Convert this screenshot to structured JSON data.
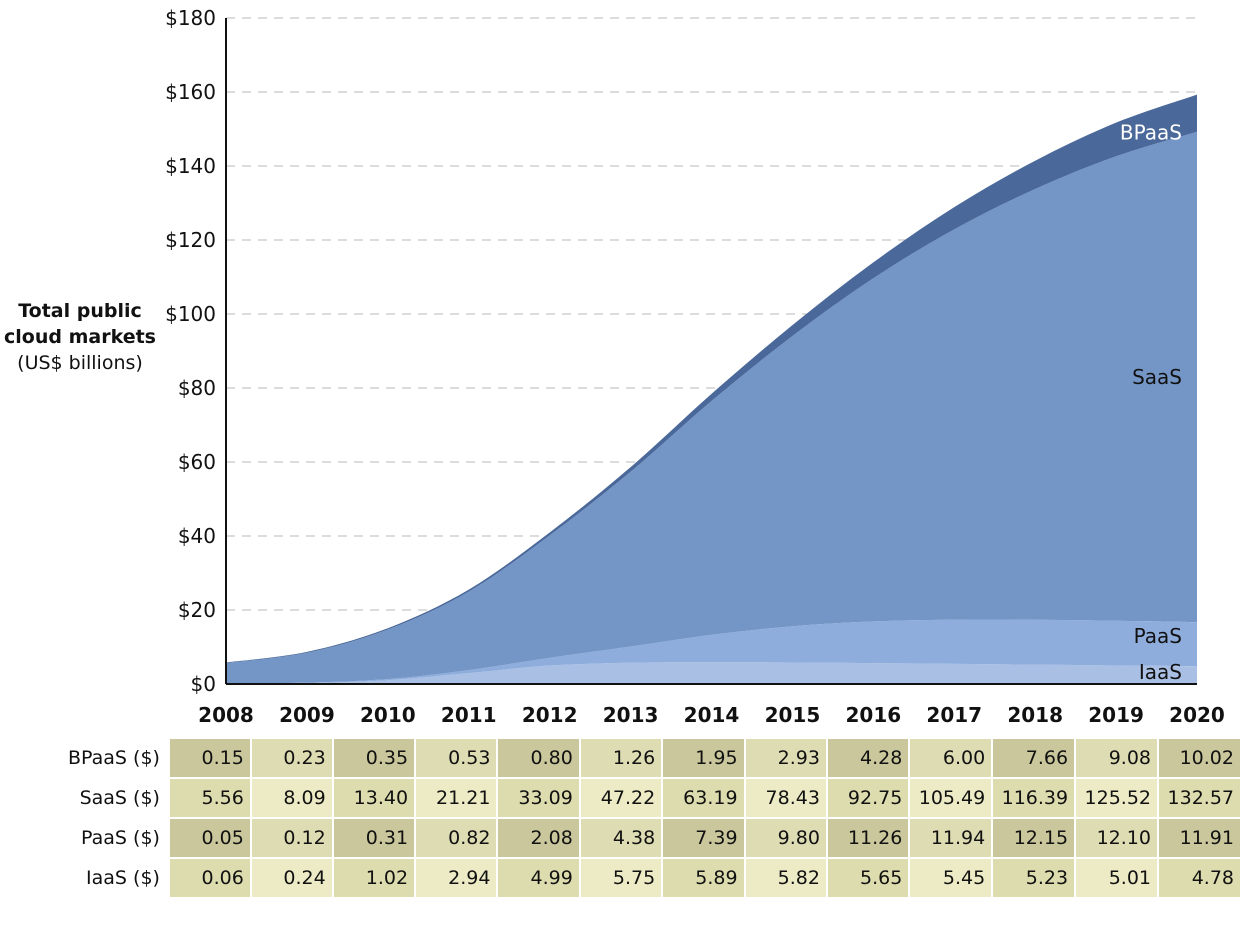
{
  "chart_data": {
    "type": "area",
    "stacked": true,
    "x": [
      "2008",
      "2009",
      "2010",
      "2011",
      "2012",
      "2013",
      "2014",
      "2015",
      "2016",
      "2017",
      "2018",
      "2019",
      "2020"
    ],
    "series": [
      {
        "name": "IaaS",
        "label": "IaaS ($)",
        "color": "#a9c0e4",
        "values": [
          0.06,
          0.24,
          1.02,
          2.94,
          4.99,
          5.75,
          5.89,
          5.82,
          5.65,
          5.45,
          5.23,
          5.01,
          4.78
        ]
      },
      {
        "name": "PaaS",
        "label": "PaaS ($)",
        "color": "#8eaddd",
        "values": [
          0.05,
          0.12,
          0.31,
          0.82,
          2.08,
          4.38,
          7.39,
          9.8,
          11.26,
          11.94,
          12.15,
          12.1,
          11.91
        ]
      },
      {
        "name": "SaaS",
        "label": "SaaS ($)",
        "color": "#7496c7",
        "values": [
          5.56,
          8.09,
          13.4,
          21.21,
          33.09,
          47.22,
          63.19,
          78.43,
          92.75,
          105.49,
          116.39,
          125.52,
          132.57
        ]
      },
      {
        "name": "BPaaS",
        "label": "BPaaS ($)",
        "color": "#4a6899",
        "values": [
          0.15,
          0.23,
          0.35,
          0.53,
          0.8,
          1.26,
          1.95,
          2.93,
          4.28,
          6.0,
          7.66,
          9.08,
          10.02
        ]
      }
    ],
    "table_rows": [
      {
        "label": "BPaaS ($)",
        "values": [
          "0.15",
          "0.23",
          "0.35",
          "0.53",
          "0.80",
          "1.26",
          "1.95",
          "2.93",
          "4.28",
          "6.00",
          "7.66",
          "9.08",
          "10.02"
        ]
      },
      {
        "label": "SaaS ($)",
        "values": [
          "5.56",
          "8.09",
          "13.40",
          "21.21",
          "33.09",
          "47.22",
          "63.19",
          "78.43",
          "92.75",
          "105.49",
          "116.39",
          "125.52",
          "132.57"
        ]
      },
      {
        "label": "PaaS ($)",
        "values": [
          "0.05",
          "0.12",
          "0.31",
          "0.82",
          "2.08",
          "4.38",
          "7.39",
          "9.80",
          "11.26",
          "11.94",
          "12.15",
          "12.10",
          "11.91"
        ]
      },
      {
        "label": "IaaS ($)",
        "values": [
          "0.06",
          "0.24",
          "1.02",
          "2.94",
          "4.99",
          "5.75",
          "5.89",
          "5.82",
          "5.65",
          "5.45",
          "5.23",
          "5.01",
          "4.78"
        ]
      }
    ],
    "ylabel_title": "Total public cloud markets",
    "ylabel_unit": "(US$ billions)",
    "ylim": [
      0,
      180
    ],
    "yticks": [
      0,
      20,
      40,
      60,
      80,
      100,
      120,
      140,
      160,
      180
    ],
    "ytick_labels": [
      "$0",
      "$20",
      "$40",
      "$60",
      "$80",
      "$100",
      "$120",
      "$140",
      "$160",
      "$180"
    ],
    "grid": true
  }
}
